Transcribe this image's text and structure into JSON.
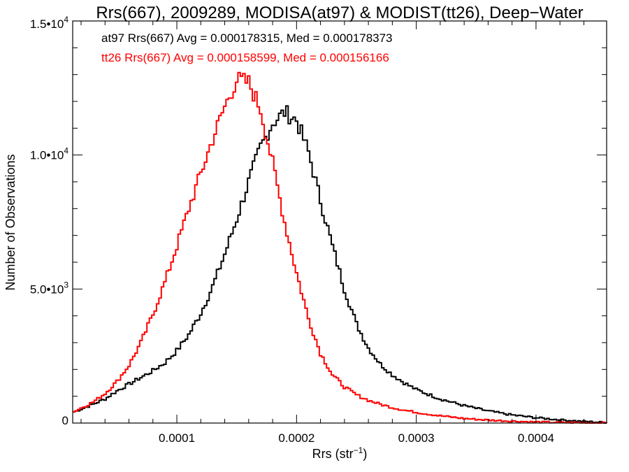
{
  "chart_data": {
    "type": "histogram",
    "title": "Rrs(667), 2009289, MODISA(at97) & MODIST(tt26), Deep−Water",
    "xlabel": "Rrs (str",
    "xlabel_sup": "−1",
    "xlabel_close": ")",
    "ylabel": "Number of Observations",
    "xlim": [
      1.3e-05,
      0.000459
    ],
    "ylim": [
      0,
      15000
    ],
    "x_ticks": [
      {
        "value": 0.0001,
        "label": "0.0001"
      },
      {
        "value": 0.0002,
        "label": "0.0002"
      },
      {
        "value": 0.0003,
        "label": "0.0003"
      },
      {
        "value": 0.0004,
        "label": "0.0004"
      }
    ],
    "y_ticks": [
      {
        "value": 0,
        "label": "0",
        "sup": ""
      },
      {
        "value": 5000,
        "label": "5.0•10",
        "sup": "3"
      },
      {
        "value": 10000,
        "label": "1.0•10",
        "sup": "4"
      },
      {
        "value": 15000,
        "label": "1.5•10",
        "sup": "4"
      }
    ],
    "x_minor_step": 2e-05,
    "y_minor_step": 1000,
    "stats": [
      {
        "text": "at97 Rrs(667) Avg = 0.000178315, Med = 0.000178373",
        "color": "#000000"
      },
      {
        "text": "tt26 Rrs(667) Avg = 0.000158599, Med = 0.000156166",
        "color": "#ff0000"
      }
    ],
    "series": [
      {
        "name": "at97",
        "color": "#000000",
        "x": [
          1.3e-05,
          2e-05,
          3e-05,
          4e-05,
          5e-05,
          6e-05,
          7e-05,
          8e-05,
          9e-05,
          0.0001,
          0.00011,
          0.00012,
          0.00013,
          0.00014,
          0.00015,
          0.00016,
          0.00017,
          0.00018,
          0.00019,
          0.0002,
          0.00021,
          0.00022,
          0.00023,
          0.00024,
          0.00025,
          0.00026,
          0.00027,
          0.00028,
          0.00029,
          0.0003,
          0.00032,
          0.00034,
          0.00036,
          0.00038,
          0.0004,
          0.00042,
          0.00044,
          0.000459
        ],
        "y": [
          400,
          520,
          700,
          900,
          1200,
          1450,
          1700,
          1950,
          2250,
          2700,
          3300,
          4100,
          5100,
          6300,
          7600,
          9000,
          10300,
          11200,
          11600,
          11300,
          10100,
          8300,
          6600,
          5000,
          3700,
          2800,
          2200,
          1800,
          1500,
          1250,
          900,
          650,
          450,
          300,
          200,
          120,
          60,
          20
        ]
      },
      {
        "name": "tt26",
        "color": "#ff0000",
        "x": [
          1.3e-05,
          2e-05,
          3e-05,
          4e-05,
          5e-05,
          6e-05,
          7e-05,
          8e-05,
          9e-05,
          0.0001,
          0.00011,
          0.00012,
          0.00013,
          0.00014,
          0.00015,
          0.00016,
          0.00017,
          0.00018,
          0.00019,
          0.0002,
          0.00021,
          0.00022,
          0.00023,
          0.00024,
          0.00025,
          0.00026,
          0.00027,
          0.00028,
          0.00029,
          0.0003,
          0.00032,
          0.00034,
          0.00036,
          0.00038,
          0.0004,
          0.00042,
          0.00044,
          0.000459
        ],
        "y": [
          400,
          560,
          780,
          1100,
          1550,
          2150,
          3000,
          4050,
          5250,
          6600,
          8000,
          9300,
          10600,
          11800,
          12800,
          12700,
          11700,
          9700,
          7500,
          5600,
          3900,
          2600,
          1800,
          1350,
          1050,
          850,
          700,
          580,
          480,
          400,
          270,
          170,
          110,
          70,
          40,
          20,
          10,
          5
        ]
      }
    ]
  }
}
